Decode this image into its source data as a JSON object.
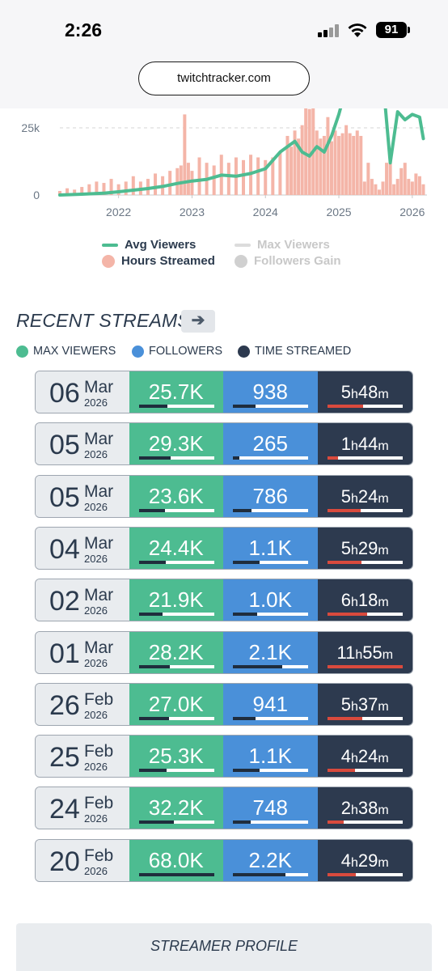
{
  "status_bar": {
    "time": "2:26",
    "battery": "91"
  },
  "browser": {
    "url": "twitchtracker.com"
  },
  "chart_data": {
    "type": "bar",
    "title": "",
    "x_ticks": [
      "2022",
      "2023",
      "2024",
      "2025",
      "2026"
    ],
    "y_ticks": [
      "25k",
      "0"
    ],
    "ylim": [
      0,
      45000
    ],
    "grid": true,
    "series": [
      {
        "name": "Avg Viewers",
        "type": "line",
        "color": "#4dbc91",
        "x": [
          2021.2,
          2021.5,
          2021.8,
          2022.0,
          2022.2,
          2022.4,
          2022.6,
          2022.8,
          2023.0,
          2023.2,
          2023.4,
          2023.6,
          2023.8,
          2024.0,
          2024.2,
          2024.4,
          2024.5,
          2024.6,
          2024.7,
          2024.8,
          2024.9,
          2025.0,
          2025.1,
          2025.2,
          2025.3,
          2025.4,
          2025.5,
          2025.6,
          2025.7,
          2025.8,
          2025.9,
          2026.0,
          2026.1,
          2026.15
        ],
        "y": [
          0,
          300,
          700,
          1200,
          1800,
          2400,
          3200,
          4300,
          5200,
          5800,
          7400,
          7000,
          8000,
          9800,
          16000,
          20000,
          16000,
          14500,
          18000,
          16000,
          22000,
          30000,
          40000,
          45000,
          34000,
          37000,
          45000,
          43000,
          12000,
          31000,
          28000,
          30000,
          29000,
          21000
        ]
      },
      {
        "name": "Hours Streamed",
        "type": "bar",
        "color": "#f4b5a8",
        "x": [
          2021.2,
          2021.3,
          2021.4,
          2021.5,
          2021.6,
          2021.7,
          2021.8,
          2021.9,
          2022.0,
          2022.1,
          2022.2,
          2022.3,
          2022.4,
          2022.5,
          2022.6,
          2022.7,
          2022.8,
          2022.85,
          2022.9,
          2022.95,
          2023.0,
          2023.1,
          2023.2,
          2023.3,
          2023.4,
          2023.5,
          2023.6,
          2023.7,
          2023.8,
          2023.9,
          2024.0,
          2024.1,
          2024.2,
          2024.3,
          2024.35,
          2024.4,
          2024.45,
          2024.5,
          2024.55,
          2024.6,
          2024.65,
          2024.7,
          2024.75,
          2024.8,
          2024.85,
          2024.9,
          2024.95,
          2025.0,
          2025.05,
          2025.1,
          2025.15,
          2025.2,
          2025.25,
          2025.3,
          2025.35,
          2025.4,
          2025.45,
          2025.5,
          2025.55,
          2025.6,
          2025.65,
          2025.7,
          2025.75,
          2025.8,
          2025.85,
          2025.9,
          2025.95,
          2026.0,
          2026.05,
          2026.1,
          2026.15
        ],
        "y": [
          1500,
          2500,
          2000,
          3000,
          4000,
          5000,
          4500,
          6000,
          4000,
          5000,
          7000,
          5000,
          6000,
          8000,
          7000,
          9000,
          10000,
          11000,
          30000,
          12000,
          9000,
          14000,
          12000,
          11000,
          15000,
          12000,
          14000,
          13000,
          15000,
          14000,
          13000,
          14000,
          16000,
          22000,
          18000,
          24000,
          21000,
          26000,
          37000,
          32000,
          46000,
          24000,
          21000,
          22000,
          29000,
          20000,
          24000,
          22000,
          23000,
          26000,
          23000,
          22000,
          24000,
          22000,
          5000,
          12000,
          6000,
          4000,
          2000,
          5000,
          12000,
          14000,
          4000,
          6000,
          10000,
          12000,
          6000,
          5000,
          8000,
          7000,
          4000
        ]
      },
      {
        "name": "Max Viewers",
        "type": "line",
        "color": "#d9d9d9",
        "x": [],
        "y": []
      },
      {
        "name": "Followers Gain",
        "type": "bar",
        "color": "#cccccc",
        "x": [],
        "y": []
      }
    ]
  },
  "legend": {
    "avg_viewers": "Avg Viewers",
    "hours_streamed": "Hours Streamed",
    "max_viewers": "Max Viewers",
    "followers_gain": "Followers Gain"
  },
  "recent": {
    "title": "RECENT STREAMS",
    "arrow": "➔",
    "keys": {
      "max_viewers": "MAX VIEWERS",
      "followers": "FOLLOWERS",
      "time_streamed": "TIME STREAMED"
    },
    "colors": {
      "viewers": "#4dbc91",
      "followers": "#4a90d9",
      "time": "#2d3a4f",
      "time_bar": "#d94a3d"
    },
    "streams": [
      {
        "day": "06",
        "month": "Mar",
        "year": "2026",
        "viewers": "25.7K",
        "followers": "938",
        "h": "5",
        "m": "48",
        "vb": 0.38,
        "fb": 0.3,
        "tb": 0.48
      },
      {
        "day": "05",
        "month": "Mar",
        "year": "2026",
        "viewers": "29.3K",
        "followers": "265",
        "h": "1",
        "m": "44",
        "vb": 0.43,
        "fb": 0.09,
        "tb": 0.14
      },
      {
        "day": "05",
        "month": "Mar",
        "year": "2026",
        "viewers": "23.6K",
        "followers": "786",
        "h": "5",
        "m": "24",
        "vb": 0.35,
        "fb": 0.25,
        "tb": 0.45
      },
      {
        "day": "04",
        "month": "Mar",
        "year": "2026",
        "viewers": "24.4K",
        "followers": "1.1K",
        "h": "5",
        "m": "29",
        "vb": 0.36,
        "fb": 0.35,
        "tb": 0.46
      },
      {
        "day": "02",
        "month": "Mar",
        "year": "2026",
        "viewers": "21.9K",
        "followers": "1.0K",
        "h": "6",
        "m": "18",
        "vb": 0.32,
        "fb": 0.32,
        "tb": 0.53
      },
      {
        "day": "01",
        "month": "Mar",
        "year": "2026",
        "viewers": "28.2K",
        "followers": "2.1K",
        "h": "11",
        "m": "55",
        "vb": 0.41,
        "fb": 0.66,
        "tb": 1.0
      },
      {
        "day": "26",
        "month": "Feb",
        "year": "2026",
        "viewers": "27.0K",
        "followers": "941",
        "h": "5",
        "m": "37",
        "vb": 0.4,
        "fb": 0.3,
        "tb": 0.47
      },
      {
        "day": "25",
        "month": "Feb",
        "year": "2026",
        "viewers": "25.3K",
        "followers": "1.1K",
        "h": "4",
        "m": "24",
        "vb": 0.37,
        "fb": 0.35,
        "tb": 0.37
      },
      {
        "day": "24",
        "month": "Feb",
        "year": "2026",
        "viewers": "32.2K",
        "followers": "748",
        "h": "2",
        "m": "38",
        "vb": 0.47,
        "fb": 0.24,
        "tb": 0.22
      },
      {
        "day": "20",
        "month": "Feb",
        "year": "2026",
        "viewers": "68.0K",
        "followers": "2.2K",
        "h": "4",
        "m": "29",
        "vb": 1.0,
        "fb": 0.7,
        "tb": 0.38
      }
    ]
  },
  "profile": {
    "title": "STREAMER PROFILE"
  }
}
